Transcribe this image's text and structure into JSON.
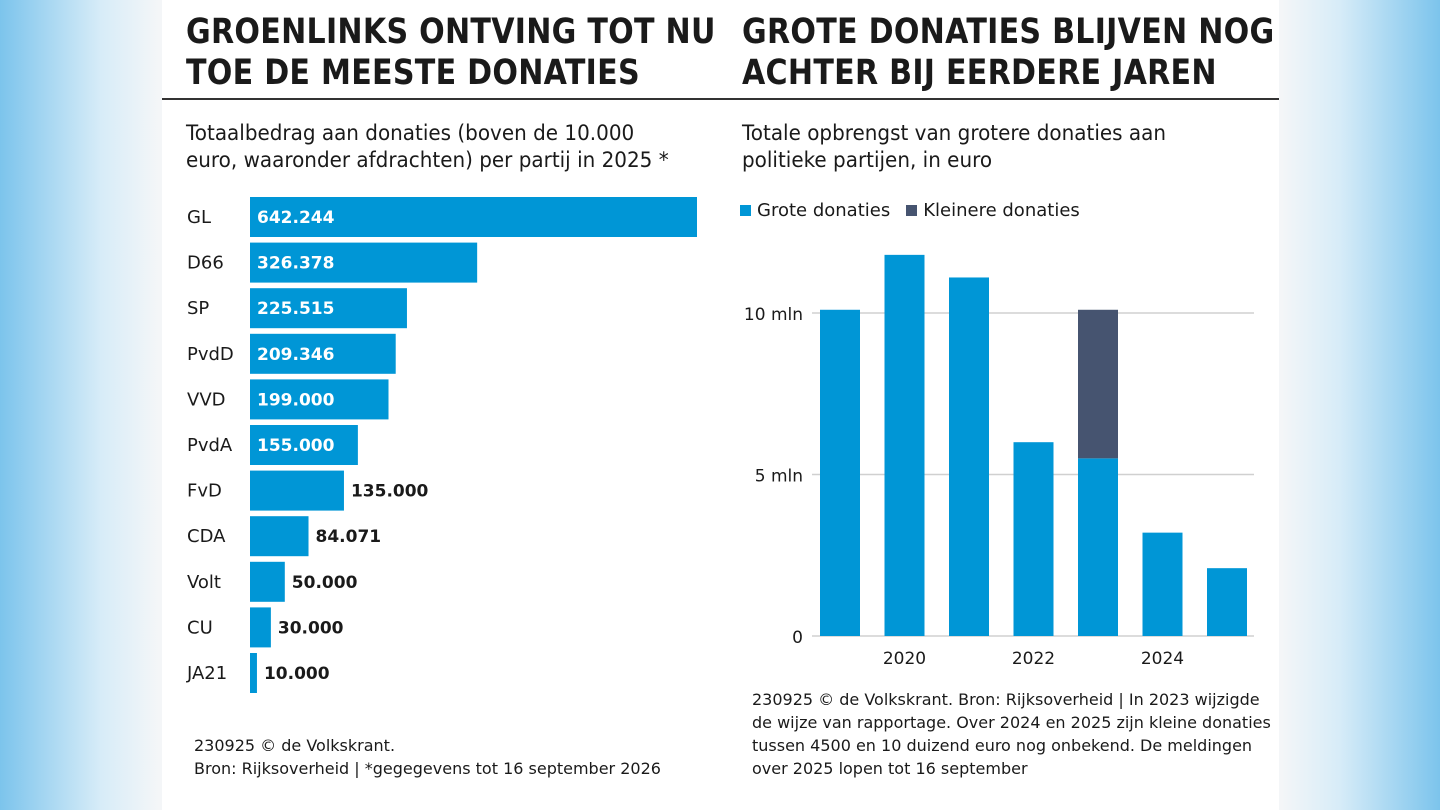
{
  "left": {
    "title_lines": [
      "GROENLINKS ONTVING TOT NU",
      "TOE DE MEESTE DONATIES"
    ],
    "subtitle_lines": [
      "Totaalbedrag aan donaties (boven de 10.000",
      "euro, waaronder afdrachten) per partij in 2025 *"
    ],
    "footer_lines": [
      "230925 © de Volkskrant.",
      "Bron: Rijksoverheid | *gegegevens tot 16 september 2026"
    ]
  },
  "right": {
    "title_lines": [
      "GROTE DONATIES BLIJVEN NOG",
      "ACHTER BIJ EERDERE JAREN"
    ],
    "subtitle_lines": [
      "Totale opbrengst van grotere donaties aan",
      "politieke partijen, in euro"
    ],
    "legend": [
      {
        "label": "Grote donaties",
        "color": "#0096d6"
      },
      {
        "label": "Kleinere donaties",
        "color": "#465470"
      }
    ],
    "footer_lines": [
      "230925 © de Volkskrant. Bron: Rijksoverheid | In 2023  wijzigde",
      "de wijze van rapportage. Over 2024 en 2025 zijn kleine donaties",
      "tussen 4500 en 10 duizend euro nog onbekend. De meldingen",
      "over 2025 lopen tot 16 september"
    ]
  },
  "colors": {
    "bar": "#0096d6",
    "stack": "#465470",
    "grid": "#d0d0d0"
  },
  "chart_data": [
    {
      "type": "bar",
      "orientation": "horizontal",
      "categories": [
        "GL",
        "D66",
        "SP",
        "PvdD",
        "VVD",
        "PvdA",
        "FvD",
        "CDA",
        "Volt",
        "CU",
        "JA21"
      ],
      "values": [
        642244,
        326378,
        225515,
        209346,
        199000,
        155000,
        135000,
        84071,
        50000,
        30000,
        10000
      ],
      "value_labels": [
        "642.244",
        "326.378",
        "225.515",
        "209.346",
        "199.000",
        "155.000",
        "135.000",
        "84.071",
        "50.000",
        "30.000",
        "10.000"
      ],
      "xlim": [
        0,
        642244
      ]
    },
    {
      "type": "bar",
      "stacked": true,
      "x": [
        2019,
        2020,
        2021,
        2022,
        2023,
        2024,
        2025
      ],
      "x_tick_labels": [
        "2020",
        "2022",
        "2024"
      ],
      "series": [
        {
          "name": "Grote donaties",
          "values": [
            10.1,
            11.8,
            11.1,
            6.0,
            5.5,
            3.2,
            2.1
          ]
        },
        {
          "name": "Kleinere donaties",
          "values": [
            0,
            0,
            0,
            0,
            4.6,
            0,
            0
          ]
        }
      ],
      "y_tick_labels": [
        "0",
        "5 mln",
        "10 mln"
      ],
      "y_ticks": [
        0,
        5,
        10
      ],
      "ylim": [
        0,
        12
      ],
      "grid": true
    }
  ]
}
